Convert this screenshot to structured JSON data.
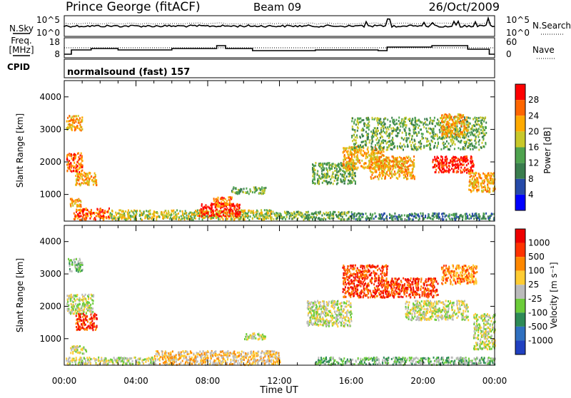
{
  "header": {
    "station": "Prince George (fitACF)",
    "beam": "Beam 09",
    "date": "26/Oct/2009"
  },
  "noise_panel": {
    "left_label": "N.Sky",
    "left_ticks": [
      "10^5",
      "10^0"
    ],
    "right_label": "N.Search",
    "right_ticks": [
      "10^5",
      "10^0"
    ]
  },
  "freq_panel": {
    "left_label_1": "Freq.",
    "left_label_2": "[MHz]",
    "left_ticks": [
      "18",
      "8"
    ],
    "right_label": "Nave",
    "right_ticks": [
      "60",
      "0"
    ]
  },
  "cpid_panel": {
    "label": "CPID",
    "program": "normalsound (fast) 157"
  },
  "colors": {
    "power_scale": [
      "#0000ff",
      "#264aa8",
      "#3a7d4e",
      "#4fa34f",
      "#c8c82a",
      "#ffaa00",
      "#ff6600",
      "#ff0000"
    ],
    "velocity_scale": [
      "#2040c0",
      "#3070c0",
      "#2e8b57",
      "#6ccc3a",
      "#bbbbbb",
      "#ffcc33",
      "#ff8800",
      "#ff3300",
      "#ee0000"
    ]
  },
  "chart_data": [
    {
      "type": "heatmap",
      "name": "power",
      "ylabel": "Slant Range [km]",
      "yticks": [
        "1000",
        "2000",
        "3000",
        "4000"
      ],
      "ylim": [
        180,
        4500
      ],
      "xlim": [
        0,
        24
      ],
      "colorbar_label": "Power [dB]",
      "colorbar_ticks": [
        "4",
        "8",
        "12",
        "16",
        "20",
        "24",
        "28"
      ],
      "blobs": [
        {
          "x0": 0.1,
          "x1": 1.0,
          "y0": 3000,
          "y1": 3450,
          "level": 5
        },
        {
          "x0": 0.1,
          "x1": 1.0,
          "y0": 1700,
          "y1": 2300,
          "level": 6
        },
        {
          "x0": 0.6,
          "x1": 1.8,
          "y0": 1300,
          "y1": 1700,
          "level": 5
        },
        {
          "x0": 0.3,
          "x1": 0.9,
          "y0": 650,
          "y1": 900,
          "level": 5
        },
        {
          "x0": 0.5,
          "x1": 2.5,
          "y0": 250,
          "y1": 600,
          "level": 6
        },
        {
          "x0": 2.5,
          "x1": 11.5,
          "y0": 250,
          "y1": 550,
          "level": 4
        },
        {
          "x0": 7.5,
          "x1": 9.8,
          "y0": 350,
          "y1": 750,
          "level": 7
        },
        {
          "x0": 8.3,
          "x1": 9.4,
          "y0": 650,
          "y1": 950,
          "level": 6
        },
        {
          "x0": 9.3,
          "x1": 11.2,
          "y0": 1050,
          "y1": 1250,
          "level": 3
        },
        {
          "x0": 11.5,
          "x1": 16.0,
          "y0": 250,
          "y1": 500,
          "level": 3
        },
        {
          "x0": 13.8,
          "x1": 16.2,
          "y0": 1350,
          "y1": 2000,
          "level": 3
        },
        {
          "x0": 15.5,
          "x1": 17.8,
          "y0": 1800,
          "y1": 2500,
          "level": 5
        },
        {
          "x0": 17.0,
          "x1": 19.5,
          "y0": 1500,
          "y1": 2200,
          "level": 5
        },
        {
          "x0": 16.0,
          "x1": 23.5,
          "y0": 2400,
          "y1": 3400,
          "level": 3
        },
        {
          "x0": 20.5,
          "x1": 22.8,
          "y0": 1700,
          "y1": 2200,
          "level": 7
        },
        {
          "x0": 21.0,
          "x1": 22.5,
          "y0": 2800,
          "y1": 3500,
          "level": 5
        },
        {
          "x0": 22.5,
          "x1": 24.0,
          "y0": 1100,
          "y1": 1700,
          "level": 5
        },
        {
          "x0": 16.0,
          "x1": 24.0,
          "y0": 250,
          "y1": 450,
          "level": 2
        }
      ]
    },
    {
      "type": "heatmap",
      "name": "velocity",
      "ylabel": "Slant Range [km]",
      "yticks": [
        "1000",
        "2000",
        "3000",
        "4000"
      ],
      "ylim": [
        180,
        4500
      ],
      "xlim": [
        0,
        24
      ],
      "colorbar_label": "Velocity [m s⁻¹]",
      "colorbar_ticks": [
        "1000",
        "500",
        "100",
        "25",
        "-25",
        "-100",
        "-500",
        "-1000"
      ],
      "blobs": [
        {
          "x0": 0.2,
          "x1": 1.0,
          "y0": 3100,
          "y1": 3500,
          "level": 3
        },
        {
          "x0": 0.1,
          "x1": 1.6,
          "y0": 1800,
          "y1": 2400,
          "level": 4
        },
        {
          "x0": 0.6,
          "x1": 1.8,
          "y0": 1300,
          "y1": 1800,
          "level": 7
        },
        {
          "x0": 0.3,
          "x1": 1.2,
          "y0": 550,
          "y1": 800,
          "level": 4
        },
        {
          "x0": 0.0,
          "x1": 5.0,
          "y0": 220,
          "y1": 450,
          "level": 4
        },
        {
          "x0": 5.0,
          "x1": 12.0,
          "y0": 220,
          "y1": 650,
          "level": 5
        },
        {
          "x0": 10.0,
          "x1": 11.2,
          "y0": 1000,
          "y1": 1200,
          "level": 4
        },
        {
          "x0": 13.5,
          "x1": 16.0,
          "y0": 1400,
          "y1": 2200,
          "level": 4
        },
        {
          "x0": 15.5,
          "x1": 18.0,
          "y0": 2300,
          "y1": 3300,
          "level": 7
        },
        {
          "x0": 18.0,
          "x1": 20.8,
          "y0": 2300,
          "y1": 2900,
          "level": 7
        },
        {
          "x0": 19.0,
          "x1": 22.5,
          "y0": 1600,
          "y1": 2200,
          "level": 4
        },
        {
          "x0": 21.0,
          "x1": 23.0,
          "y0": 2700,
          "y1": 3300,
          "level": 6
        },
        {
          "x0": 22.8,
          "x1": 24.0,
          "y0": 700,
          "y1": 1800,
          "level": 4
        },
        {
          "x0": 14.0,
          "x1": 24.0,
          "y0": 220,
          "y1": 450,
          "level": 3
        }
      ]
    }
  ],
  "time_axis": {
    "ticks": [
      "00:00",
      "04:00",
      "08:00",
      "12:00",
      "16:00",
      "20:00",
      "00:00"
    ],
    "label": "Time UT"
  }
}
